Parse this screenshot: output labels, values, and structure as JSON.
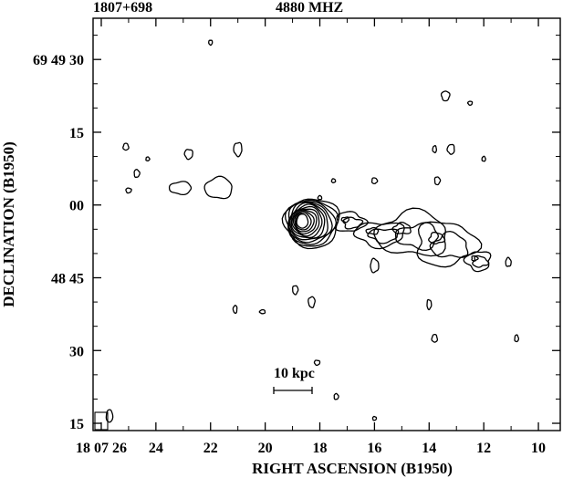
{
  "chart_data": {
    "type": "contour",
    "title_left": "1807+698",
    "title_right": "4880 MHZ",
    "xlabel": "RIGHT ASCENSION (B1950)",
    "ylabel": "DECLINATION (B1950)",
    "x_tick_labels": [
      "18 07 26",
      "24",
      "22",
      "20",
      "18",
      "16",
      "14",
      "12",
      "10"
    ],
    "x_tick_seconds": [
      26,
      24,
      22,
      20,
      18,
      16,
      14,
      12,
      10
    ],
    "x_range_seconds": [
      26.3,
      9.2
    ],
    "y_tick_labels": [
      "69 49 30",
      "15",
      "00",
      "48 45",
      "30",
      "15"
    ],
    "y_tick_arcsec_offsets": [
      30,
      15,
      0,
      -15,
      -30,
      -45
    ],
    "y_range_arcsec_offsets": [
      -46.5,
      38.5
    ],
    "scale_bar_label": "10 kpc",
    "core": {
      "ra_sec": 18.6,
      "dec_offset": -3.3,
      "levels": 12
    },
    "jet_blobs": [
      {
        "ra_sec": 16.9,
        "dec_offset": -3.5,
        "rx": 0.55,
        "ry": 2.0
      },
      {
        "ra_sec": 15.8,
        "dec_offset": -6.0,
        "rx": 0.9,
        "ry": 2.5
      },
      {
        "ra_sec": 14.6,
        "dec_offset": -6.0,
        "rx": 1.3,
        "ry": 4.5
      },
      {
        "ra_sec": 13.4,
        "dec_offset": -8.0,
        "rx": 1.1,
        "ry": 4.5
      },
      {
        "ra_sec": 12.2,
        "dec_offset": -11.5,
        "rx": 0.45,
        "ry": 2.0
      }
    ],
    "noise_contours": [
      {
        "ra_sec": 25.1,
        "dec_offset": 12.0,
        "rx": 0.1,
        "ry": 0.7
      },
      {
        "ra_sec": 24.3,
        "dec_offset": 9.5,
        "rx": 0.05,
        "ry": 0.4
      },
      {
        "ra_sec": 24.7,
        "dec_offset": 6.5,
        "rx": 0.1,
        "ry": 0.8
      },
      {
        "ra_sec": 25.0,
        "dec_offset": 3.0,
        "rx": 0.1,
        "ry": 0.5
      },
      {
        "ra_sec": 22.8,
        "dec_offset": 10.5,
        "rx": 0.15,
        "ry": 1.0
      },
      {
        "ra_sec": 21.0,
        "dec_offset": 11.5,
        "rx": 0.15,
        "ry": 1.4
      },
      {
        "ra_sec": 23.1,
        "dec_offset": 3.5,
        "rx": 0.4,
        "ry": 1.3
      },
      {
        "ra_sec": 21.7,
        "dec_offset": 3.5,
        "rx": 0.5,
        "ry": 2.2
      },
      {
        "ra_sec": 18.0,
        "dec_offset": 1.5,
        "rx": 0.07,
        "ry": 0.4
      },
      {
        "ra_sec": 17.5,
        "dec_offset": 5.0,
        "rx": 0.07,
        "ry": 0.4
      },
      {
        "ra_sec": 16.0,
        "dec_offset": 5.0,
        "rx": 0.1,
        "ry": 0.6
      },
      {
        "ra_sec": 13.7,
        "dec_offset": 5.0,
        "rx": 0.1,
        "ry": 0.8
      },
      {
        "ra_sec": 13.4,
        "dec_offset": 22.5,
        "rx": 0.15,
        "ry": 1.0
      },
      {
        "ra_sec": 12.5,
        "dec_offset": 21.0,
        "rx": 0.08,
        "ry": 0.4
      },
      {
        "ra_sec": 13.2,
        "dec_offset": 11.5,
        "rx": 0.13,
        "ry": 1.0
      },
      {
        "ra_sec": 13.8,
        "dec_offset": 11.5,
        "rx": 0.07,
        "ry": 0.7
      },
      {
        "ra_sec": 12.0,
        "dec_offset": 9.5,
        "rx": 0.05,
        "ry": 0.5
      },
      {
        "ra_sec": 11.1,
        "dec_offset": -11.8,
        "rx": 0.1,
        "ry": 0.9
      },
      {
        "ra_sec": 16.0,
        "dec_offset": -12.5,
        "rx": 0.15,
        "ry": 1.4
      },
      {
        "ra_sec": 14.0,
        "dec_offset": -20.5,
        "rx": 0.08,
        "ry": 1.0
      },
      {
        "ra_sec": 18.9,
        "dec_offset": -17.5,
        "rx": 0.1,
        "ry": 0.9
      },
      {
        "ra_sec": 18.3,
        "dec_offset": -20.0,
        "rx": 0.12,
        "ry": 1.1
      },
      {
        "ra_sec": 21.1,
        "dec_offset": -21.5,
        "rx": 0.07,
        "ry": 0.8
      },
      {
        "ra_sec": 20.1,
        "dec_offset": -22.0,
        "rx": 0.1,
        "ry": 0.4
      },
      {
        "ra_sec": 13.8,
        "dec_offset": -27.5,
        "rx": 0.1,
        "ry": 0.8
      },
      {
        "ra_sec": 10.8,
        "dec_offset": -27.5,
        "rx": 0.07,
        "ry": 0.7
      },
      {
        "ra_sec": 17.4,
        "dec_offset": -39.5,
        "rx": 0.08,
        "ry": 0.6
      },
      {
        "ra_sec": 16.0,
        "dec_offset": -44.0,
        "rx": 0.04,
        "ry": 0.4
      },
      {
        "ra_sec": 18.1,
        "dec_offset": -32.5,
        "rx": 0.1,
        "ry": 0.5
      },
      {
        "ra_sec": 22.0,
        "dec_offset": 33.5,
        "rx": 0.05,
        "ry": 0.5
      }
    ],
    "beam": {
      "ra_sec": 25.7,
      "dec_offset": -43.5,
      "rx": 0.12,
      "ry": 1.3
    }
  }
}
